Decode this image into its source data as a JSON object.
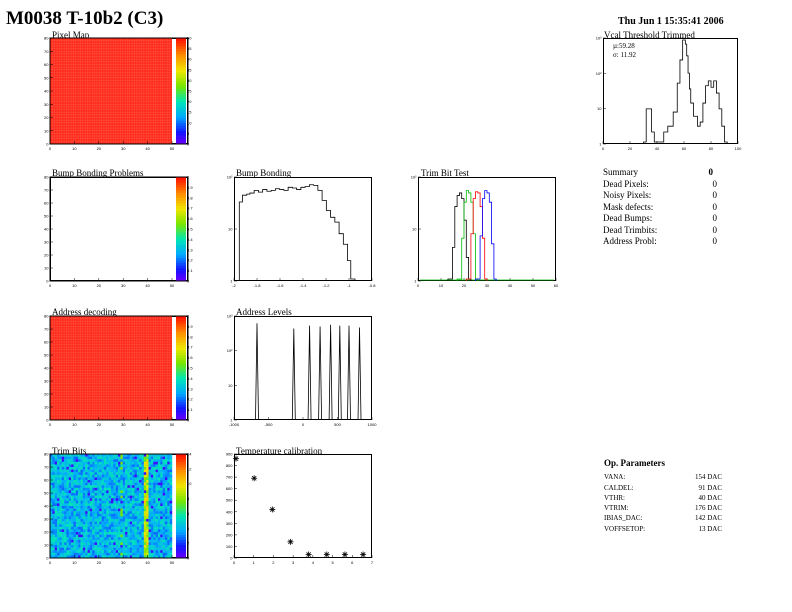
{
  "header": {
    "title": "M0038 T-10b2 (C3)",
    "date": "Thu Jun  1 15:35:41 2006"
  },
  "colors": {
    "map_red": "#ff2a1a",
    "series_black": "#000000",
    "series_green": "#00bb00",
    "series_red": "#ff0000",
    "series_blue": "#0000ff"
  },
  "icons": [
    "palette-bar-icon"
  ],
  "summary": {
    "title": "Summary",
    "total": "0",
    "rows": [
      {
        "label": "Dead Pixels:",
        "value": "0"
      },
      {
        "label": "Noisy Pixels:",
        "value": "0"
      },
      {
        "label": "Mask defects:",
        "value": "0"
      },
      {
        "label": "Dead Bumps:",
        "value": "0"
      },
      {
        "label": "Dead Trimbits:",
        "value": "0"
      },
      {
        "label": "Address Probl:",
        "value": "0"
      }
    ]
  },
  "op_params": {
    "title": "Op. Parameters",
    "rows": [
      {
        "label": "VANA:",
        "value": "154 DAC"
      },
      {
        "label": "CALDEL:",
        "value": "91 DAC"
      },
      {
        "label": "VTHR:",
        "value": "40 DAC"
      },
      {
        "label": "VTRIM:",
        "value": "176 DAC"
      },
      {
        "label": "IBIAS_DAC:",
        "value": "142 DAC"
      },
      {
        "label": "VOFFSETOP:",
        "value": "13 DAC"
      }
    ]
  },
  "chart_data": [
    {
      "id": "pixel-map",
      "type": "heatmap",
      "title": "Pixel Map",
      "x_ticks": [
        "0",
        "10",
        "20",
        "30",
        "40",
        "50"
      ],
      "y_ticks": [
        "0",
        "10",
        "20",
        "30",
        "40",
        "50",
        "60",
        "70",
        "80"
      ],
      "palette_ticks": [
        "0",
        "5",
        "10",
        "15",
        "20",
        "25",
        "30",
        "35",
        "40",
        "45",
        "50"
      ],
      "fill": "uniform",
      "grid": true
    },
    {
      "id": "vcal",
      "type": "line",
      "title": "Vcal Threshold Trimmed",
      "x_ticks": [
        "0",
        "20",
        "40",
        "60",
        "80",
        "100"
      ],
      "y_ticks": [
        "1",
        "10",
        "10²",
        "10³"
      ],
      "xlim": [
        0,
        100
      ],
      "log_y": true,
      "stats": [
        "µ:59.28",
        "σ: 11.92"
      ],
      "x": [
        30,
        32,
        36,
        38,
        42,
        45,
        48,
        52,
        55,
        57,
        59,
        61,
        62,
        63,
        64,
        65,
        67,
        70,
        72,
        74,
        76,
        78,
        80,
        82,
        84,
        86,
        88,
        90
      ],
      "values": [
        1,
        10,
        2,
        1,
        1,
        2,
        3,
        8,
        60,
        300,
        1200,
        900,
        400,
        120,
        40,
        15,
        6,
        3,
        4,
        15,
        50,
        70,
        45,
        70,
        30,
        10,
        3,
        1
      ]
    },
    {
      "id": "bump-problems",
      "type": "heatmap",
      "title": "Bump Bonding Problems",
      "x_ticks": [
        "0",
        "10",
        "20",
        "30",
        "40",
        "50"
      ],
      "y_ticks": [
        "0",
        "10",
        "20",
        "30",
        "40",
        "50",
        "60",
        "70",
        "80"
      ],
      "palette_ticks": [
        "0",
        "0.1",
        "0.2",
        "0.3",
        "0.4",
        "0.5",
        "0.6",
        "0.7",
        "0.8",
        "0.9",
        "1"
      ],
      "fill": "empty"
    },
    {
      "id": "bump-bonding",
      "type": "line",
      "title": "Bump Bonding",
      "x_ticks": [
        "-2",
        "-1.8",
        "-1.6",
        "-1.4",
        "-1.2",
        "-1",
        "-0.8"
      ],
      "y_ticks": [
        "1",
        "10",
        "10²"
      ],
      "xlim": [
        -2.05,
        -0.75
      ],
      "log_y": true,
      "x": [
        -2.0,
        -1.97,
        -1.93,
        -1.9,
        -1.86,
        -1.82,
        -1.78,
        -1.74,
        -1.7,
        -1.66,
        -1.62,
        -1.58,
        -1.54,
        -1.5,
        -1.46,
        -1.42,
        -1.38,
        -1.34,
        -1.3,
        -1.26,
        -1.22,
        -1.18,
        -1.14,
        -1.1,
        -1.06,
        -1.02,
        -0.98,
        -0.95,
        -0.93
      ],
      "values": [
        100,
        150,
        160,
        170,
        200,
        180,
        210,
        190,
        200,
        220,
        210,
        200,
        240,
        230,
        210,
        240,
        250,
        280,
        270,
        200,
        110,
        60,
        40,
        30,
        15,
        8,
        3,
        1,
        1
      ]
    },
    {
      "id": "trim-bit-test",
      "type": "line",
      "title": "Trim Bit Test",
      "x_ticks": [
        "0",
        "10",
        "20",
        "30",
        "40",
        "50",
        "60"
      ],
      "y_ticks": [
        "1",
        "10",
        "10²"
      ],
      "xlim": [
        0,
        60
      ],
      "log_y": true,
      "series": [
        {
          "x": [
            13,
            15,
            16,
            17,
            18,
            19,
            20,
            21,
            22
          ],
          "values": [
            1,
            5,
            40,
            70,
            80,
            60,
            20,
            3,
            1
          ]
        },
        {
          "x": [
            17,
            19,
            20,
            21,
            22,
            23,
            24,
            25
          ],
          "values": [
            1,
            8,
            50,
            90,
            80,
            50,
            10,
            1
          ]
        },
        {
          "x": [
            21,
            23,
            24,
            25,
            26,
            27,
            28,
            29
          ],
          "values": [
            1,
            10,
            60,
            85,
            80,
            40,
            8,
            1
          ]
        },
        {
          "x": [
            25,
            27,
            28,
            29,
            30,
            31,
            32,
            33
          ],
          "values": [
            1,
            9,
            60,
            90,
            80,
            50,
            6,
            1
          ]
        }
      ]
    },
    {
      "id": "address-decoding",
      "type": "heatmap",
      "title": "Address decoding",
      "x_ticks": [
        "0",
        "10",
        "20",
        "30",
        "40",
        "50"
      ],
      "y_ticks": [
        "0",
        "10",
        "20",
        "30",
        "40",
        "50",
        "60",
        "70",
        "80"
      ],
      "palette_ticks": [
        "0",
        "0.1",
        "0.2",
        "0.3",
        "0.4",
        "0.5",
        "0.6",
        "0.7",
        "0.8",
        "0.9",
        "1"
      ],
      "fill": "uniform"
    },
    {
      "id": "address-levels",
      "type": "line",
      "title": "Address Levels",
      "x_ticks": [
        "-1000",
        "-500",
        "0",
        "500",
        "1000"
      ],
      "y_ticks": [
        "1",
        "10",
        "10²",
        "10³"
      ],
      "xlim": [
        -1050,
        1050
      ],
      "log_y": true,
      "peaks_x": [
        -700,
        -140,
        100,
        260,
        420,
        560,
        700,
        860
      ],
      "peak_values": [
        1800,
        1200,
        1500,
        1400,
        1600,
        1500,
        1500,
        1300
      ]
    },
    {
      "id": "trim-bits",
      "type": "heatmap",
      "title": "Trim Bits",
      "x_ticks": [
        "0",
        "10",
        "20",
        "30",
        "40",
        "50"
      ],
      "y_ticks": [
        "0",
        "10",
        "20",
        "30",
        "40",
        "50",
        "60",
        "70",
        "80"
      ],
      "palette_ticks": [
        "0",
        "2",
        "4",
        "6",
        "8",
        "10",
        "12",
        "14"
      ],
      "fill": "noisy"
    },
    {
      "id": "temp-cal",
      "type": "scatter",
      "title": "Temperature calibration",
      "x_ticks": [
        "0",
        "1",
        "2",
        "3",
        "4",
        "5",
        "6",
        "7"
      ],
      "y_ticks": [
        "0",
        "100",
        "200",
        "300",
        "400",
        "500",
        "600",
        "700",
        "800",
        "900"
      ],
      "xlim": [
        0,
        7.6
      ],
      "ylim": [
        0,
        900
      ],
      "x": [
        0,
        1,
        2,
        3,
        4,
        5,
        6,
        7
      ],
      "values": [
        860,
        690,
        420,
        140,
        30,
        30,
        30,
        30
      ]
    }
  ]
}
